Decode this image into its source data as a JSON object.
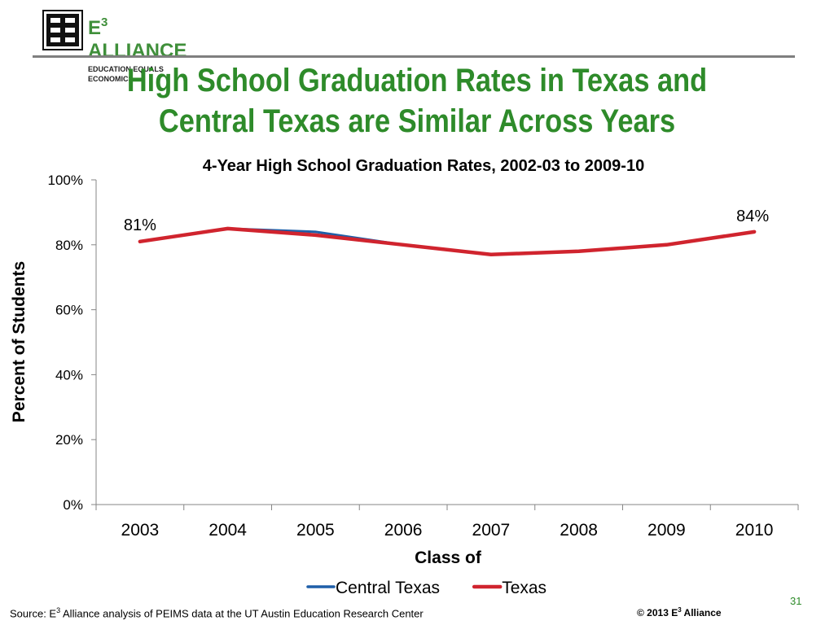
{
  "logo": {
    "name": "E3 ALLIANCE",
    "name_main": "E",
    "name_sup": "3",
    "name_rest": " ALLIANCE",
    "tagline": "EDUCATION EQUALS ECONOMICS"
  },
  "slide_title": "High School Graduation Rates in Texas and Central Texas are Similar Across Years",
  "footer": {
    "source_pre": "Source: E",
    "source_sup": "3",
    "source_post": " Alliance analysis of PEIMS data at the UT Austin Education Research Center",
    "copyright_pre": "© 2013 E",
    "copyright_sup": "3",
    "copyright_post": " Alliance",
    "page_number": "31"
  },
  "colors": {
    "title_green": "#2e8b2a",
    "central_texas": "#1f5fa8",
    "texas": "#d0242e"
  },
  "chart_data": {
    "type": "line",
    "title": "4-Year High School Graduation Rates, 2002-03 to 2009-10",
    "xlabel": "Class of",
    "ylabel": "Percent of Students",
    "categories": [
      "2003",
      "2004",
      "2005",
      "2006",
      "2007",
      "2008",
      "2009",
      "2010"
    ],
    "ylim": [
      0,
      100
    ],
    "yticks": [
      "0%",
      "20%",
      "40%",
      "60%",
      "80%",
      "100%"
    ],
    "series": [
      {
        "name": "Central Texas",
        "values": [
          81,
          85,
          84,
          80,
          77,
          78,
          80,
          84
        ],
        "color": "#1f5fa8"
      },
      {
        "name": "Texas",
        "values": [
          81,
          85,
          83,
          80,
          77,
          78,
          80,
          84
        ],
        "color": "#d0242e"
      }
    ],
    "data_labels": [
      {
        "series": "Texas",
        "index": 0,
        "text": "81%"
      },
      {
        "series": "Texas",
        "index": 7,
        "text": "84%"
      }
    ],
    "grid": false,
    "legend_position": "bottom"
  }
}
